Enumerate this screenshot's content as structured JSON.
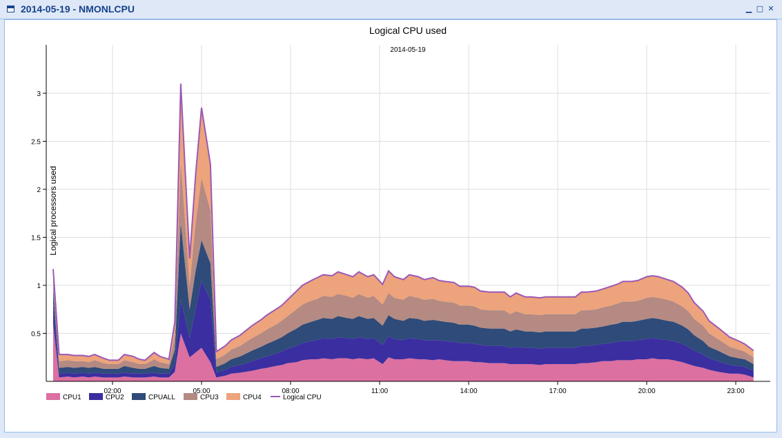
{
  "window": {
    "title": "2014-05-19 - NMONLCPU",
    "icon": "window-icon",
    "buttons": [
      "minimize",
      "maximize",
      "close"
    ]
  },
  "chart_data": {
    "type": "area",
    "stacked": true,
    "title": "Logical CPU used",
    "subtitle": "2014-05-19",
    "xlabel": "",
    "ylabel": "Logical processors used",
    "ylim": [
      0,
      3.5
    ],
    "yticks": [
      0.5,
      1,
      1.5,
      2,
      2.5,
      3
    ],
    "xticks": [
      "02:00",
      "05:00",
      "08:00",
      "11:00",
      "14:00",
      "17:00",
      "20:00",
      "23:00"
    ],
    "xtick_hours": [
      2,
      5,
      8,
      11,
      14,
      17,
      20,
      23
    ],
    "grid": true,
    "legend": "bottom-left",
    "x_hours": [
      0.0,
      0.2,
      0.5,
      0.7,
      1.0,
      1.2,
      1.4,
      1.7,
      1.9,
      2.2,
      2.4,
      2.7,
      2.9,
      3.1,
      3.4,
      3.6,
      3.9,
      4.1,
      4.3,
      4.6,
      4.8,
      5.0,
      5.3,
      5.5,
      5.8,
      6.0,
      6.3,
      6.5,
      6.7,
      7.0,
      7.2,
      7.5,
      7.7,
      7.9,
      8.2,
      8.4,
      8.7,
      8.9,
      9.1,
      9.4,
      9.6,
      9.9,
      10.1,
      10.3,
      10.6,
      10.8,
      11.1,
      11.3,
      11.5,
      11.8,
      12.0,
      12.3,
      12.5,
      12.8,
      13.0,
      13.2,
      13.5,
      13.7,
      14.0,
      14.2,
      14.4,
      14.7,
      14.9,
      15.2,
      15.4,
      15.6,
      15.9,
      16.1,
      16.4,
      16.6,
      16.8,
      17.1,
      17.3,
      17.6,
      17.8,
      18.0,
      18.3,
      18.5,
      18.8,
      19.0,
      19.2,
      19.5,
      19.7,
      20.0,
      20.2,
      20.4,
      20.7,
      20.9,
      21.2,
      21.4,
      21.6,
      21.9,
      22.1,
      22.4,
      22.6,
      22.8,
      23.1,
      23.3,
      23.6
    ],
    "series": [
      {
        "name": "CPU1",
        "color": "#db70a1",
        "values": [
          0.6,
          0.04,
          0.05,
          0.04,
          0.05,
          0.04,
          0.05,
          0.04,
          0.04,
          0.04,
          0.05,
          0.04,
          0.04,
          0.04,
          0.05,
          0.04,
          0.04,
          0.1,
          0.5,
          0.25,
          0.3,
          0.35,
          0.2,
          0.04,
          0.06,
          0.08,
          0.09,
          0.1,
          0.11,
          0.13,
          0.14,
          0.16,
          0.17,
          0.19,
          0.2,
          0.22,
          0.23,
          0.23,
          0.24,
          0.23,
          0.24,
          0.24,
          0.23,
          0.24,
          0.23,
          0.24,
          0.18,
          0.25,
          0.23,
          0.23,
          0.24,
          0.23,
          0.23,
          0.22,
          0.23,
          0.22,
          0.21,
          0.21,
          0.21,
          0.2,
          0.2,
          0.19,
          0.19,
          0.19,
          0.18,
          0.18,
          0.18,
          0.18,
          0.17,
          0.18,
          0.18,
          0.18,
          0.18,
          0.18,
          0.19,
          0.19,
          0.2,
          0.21,
          0.21,
          0.22,
          0.22,
          0.22,
          0.23,
          0.23,
          0.24,
          0.23,
          0.23,
          0.22,
          0.2,
          0.18,
          0.16,
          0.14,
          0.12,
          0.1,
          0.09,
          0.08,
          0.08,
          0.07,
          0.04
        ]
      },
      {
        "name": "CPU2",
        "color": "#3b2ea0",
        "values": [
          0.2,
          0.04,
          0.04,
          0.04,
          0.04,
          0.04,
          0.04,
          0.04,
          0.04,
          0.04,
          0.04,
          0.04,
          0.04,
          0.04,
          0.04,
          0.04,
          0.04,
          0.08,
          0.35,
          0.2,
          0.45,
          0.7,
          0.65,
          0.05,
          0.06,
          0.07,
          0.08,
          0.09,
          0.1,
          0.11,
          0.12,
          0.13,
          0.14,
          0.15,
          0.17,
          0.18,
          0.19,
          0.2,
          0.21,
          0.21,
          0.22,
          0.21,
          0.21,
          0.22,
          0.21,
          0.21,
          0.2,
          0.22,
          0.21,
          0.2,
          0.21,
          0.21,
          0.2,
          0.21,
          0.2,
          0.2,
          0.2,
          0.19,
          0.19,
          0.19,
          0.18,
          0.18,
          0.18,
          0.18,
          0.17,
          0.18,
          0.17,
          0.17,
          0.17,
          0.17,
          0.17,
          0.17,
          0.17,
          0.17,
          0.18,
          0.18,
          0.18,
          0.18,
          0.19,
          0.19,
          0.2,
          0.2,
          0.2,
          0.21,
          0.21,
          0.21,
          0.2,
          0.2,
          0.19,
          0.18,
          0.16,
          0.14,
          0.12,
          0.11,
          0.1,
          0.09,
          0.08,
          0.08,
          0.07
        ]
      },
      {
        "name": "CPUALL",
        "color": "#2e4b79",
        "values": [
          0.15,
          0.06,
          0.06,
          0.06,
          0.06,
          0.06,
          0.06,
          0.05,
          0.05,
          0.05,
          0.07,
          0.06,
          0.05,
          0.05,
          0.07,
          0.06,
          0.05,
          0.15,
          0.8,
          0.3,
          0.4,
          0.42,
          0.38,
          0.06,
          0.07,
          0.08,
          0.09,
          0.1,
          0.11,
          0.12,
          0.13,
          0.14,
          0.15,
          0.16,
          0.18,
          0.19,
          0.2,
          0.21,
          0.21,
          0.21,
          0.22,
          0.21,
          0.21,
          0.22,
          0.21,
          0.21,
          0.2,
          0.22,
          0.21,
          0.2,
          0.21,
          0.21,
          0.2,
          0.21,
          0.2,
          0.2,
          0.2,
          0.19,
          0.19,
          0.19,
          0.18,
          0.18,
          0.18,
          0.18,
          0.17,
          0.18,
          0.17,
          0.17,
          0.17,
          0.17,
          0.17,
          0.17,
          0.17,
          0.17,
          0.18,
          0.18,
          0.18,
          0.18,
          0.19,
          0.19,
          0.2,
          0.2,
          0.2,
          0.21,
          0.21,
          0.21,
          0.2,
          0.2,
          0.19,
          0.18,
          0.16,
          0.14,
          0.12,
          0.11,
          0.1,
          0.09,
          0.08,
          0.08,
          0.07
        ]
      },
      {
        "name": "CPU3",
        "color": "#b48a82",
        "values": [
          0.15,
          0.07,
          0.07,
          0.07,
          0.06,
          0.06,
          0.07,
          0.06,
          0.05,
          0.05,
          0.06,
          0.06,
          0.05,
          0.05,
          0.07,
          0.06,
          0.05,
          0.15,
          0.65,
          0.25,
          0.5,
          0.65,
          0.55,
          0.08,
          0.09,
          0.1,
          0.11,
          0.12,
          0.13,
          0.14,
          0.15,
          0.16,
          0.17,
          0.18,
          0.2,
          0.21,
          0.22,
          0.22,
          0.23,
          0.23,
          0.23,
          0.23,
          0.22,
          0.23,
          0.22,
          0.23,
          0.22,
          0.23,
          0.22,
          0.22,
          0.23,
          0.22,
          0.22,
          0.22,
          0.21,
          0.21,
          0.21,
          0.2,
          0.2,
          0.2,
          0.19,
          0.19,
          0.19,
          0.19,
          0.18,
          0.19,
          0.18,
          0.18,
          0.18,
          0.18,
          0.18,
          0.18,
          0.18,
          0.18,
          0.19,
          0.19,
          0.19,
          0.2,
          0.2,
          0.21,
          0.21,
          0.21,
          0.21,
          0.22,
          0.22,
          0.22,
          0.22,
          0.21,
          0.2,
          0.19,
          0.17,
          0.16,
          0.14,
          0.12,
          0.11,
          0.1,
          0.09,
          0.08,
          0.07
        ]
      },
      {
        "name": "CPU4",
        "color": "#eda37b",
        "values": [
          0.07,
          0.07,
          0.06,
          0.06,
          0.06,
          0.06,
          0.06,
          0.05,
          0.04,
          0.04,
          0.06,
          0.06,
          0.05,
          0.04,
          0.07,
          0.06,
          0.05,
          0.14,
          0.8,
          0.28,
          0.5,
          0.73,
          0.48,
          0.08,
          0.09,
          0.1,
          0.11,
          0.12,
          0.13,
          0.14,
          0.15,
          0.16,
          0.16,
          0.17,
          0.19,
          0.2,
          0.21,
          0.22,
          0.22,
          0.22,
          0.23,
          0.22,
          0.22,
          0.23,
          0.22,
          0.22,
          0.21,
          0.23,
          0.22,
          0.21,
          0.22,
          0.22,
          0.21,
          0.22,
          0.21,
          0.21,
          0.21,
          0.2,
          0.2,
          0.2,
          0.19,
          0.19,
          0.19,
          0.19,
          0.18,
          0.19,
          0.18,
          0.18,
          0.18,
          0.18,
          0.18,
          0.18,
          0.18,
          0.18,
          0.19,
          0.19,
          0.19,
          0.19,
          0.2,
          0.2,
          0.21,
          0.21,
          0.21,
          0.22,
          0.22,
          0.22,
          0.21,
          0.21,
          0.2,
          0.19,
          0.17,
          0.15,
          0.13,
          0.12,
          0.11,
          0.1,
          0.09,
          0.08,
          0.07
        ]
      }
    ],
    "line_series": {
      "name": "Logical CPU",
      "color": "#9b59b6",
      "values": [
        1.17,
        0.28,
        0.28,
        0.27,
        0.27,
        0.26,
        0.28,
        0.24,
        0.22,
        0.22,
        0.28,
        0.26,
        0.23,
        0.22,
        0.3,
        0.26,
        0.23,
        0.62,
        3.1,
        1.28,
        2.15,
        2.85,
        2.26,
        0.31,
        0.37,
        0.43,
        0.48,
        0.53,
        0.58,
        0.64,
        0.69,
        0.75,
        0.79,
        0.85,
        0.94,
        1.0,
        1.05,
        1.08,
        1.11,
        1.1,
        1.14,
        1.11,
        1.09,
        1.14,
        1.09,
        1.11,
        1.01,
        1.15,
        1.09,
        1.06,
        1.11,
        1.09,
        1.06,
        1.08,
        1.05,
        1.04,
        1.03,
        0.99,
        0.99,
        0.98,
        0.94,
        0.93,
        0.93,
        0.93,
        0.88,
        0.92,
        0.88,
        0.88,
        0.87,
        0.88,
        0.88,
        0.88,
        0.88,
        0.88,
        0.93,
        0.93,
        0.94,
        0.96,
        0.99,
        1.01,
        1.04,
        1.04,
        1.05,
        1.09,
        1.1,
        1.09,
        1.06,
        1.04,
        0.98,
        0.92,
        0.82,
        0.73,
        0.63,
        0.56,
        0.51,
        0.46,
        0.42,
        0.39,
        0.32
      ]
    }
  }
}
